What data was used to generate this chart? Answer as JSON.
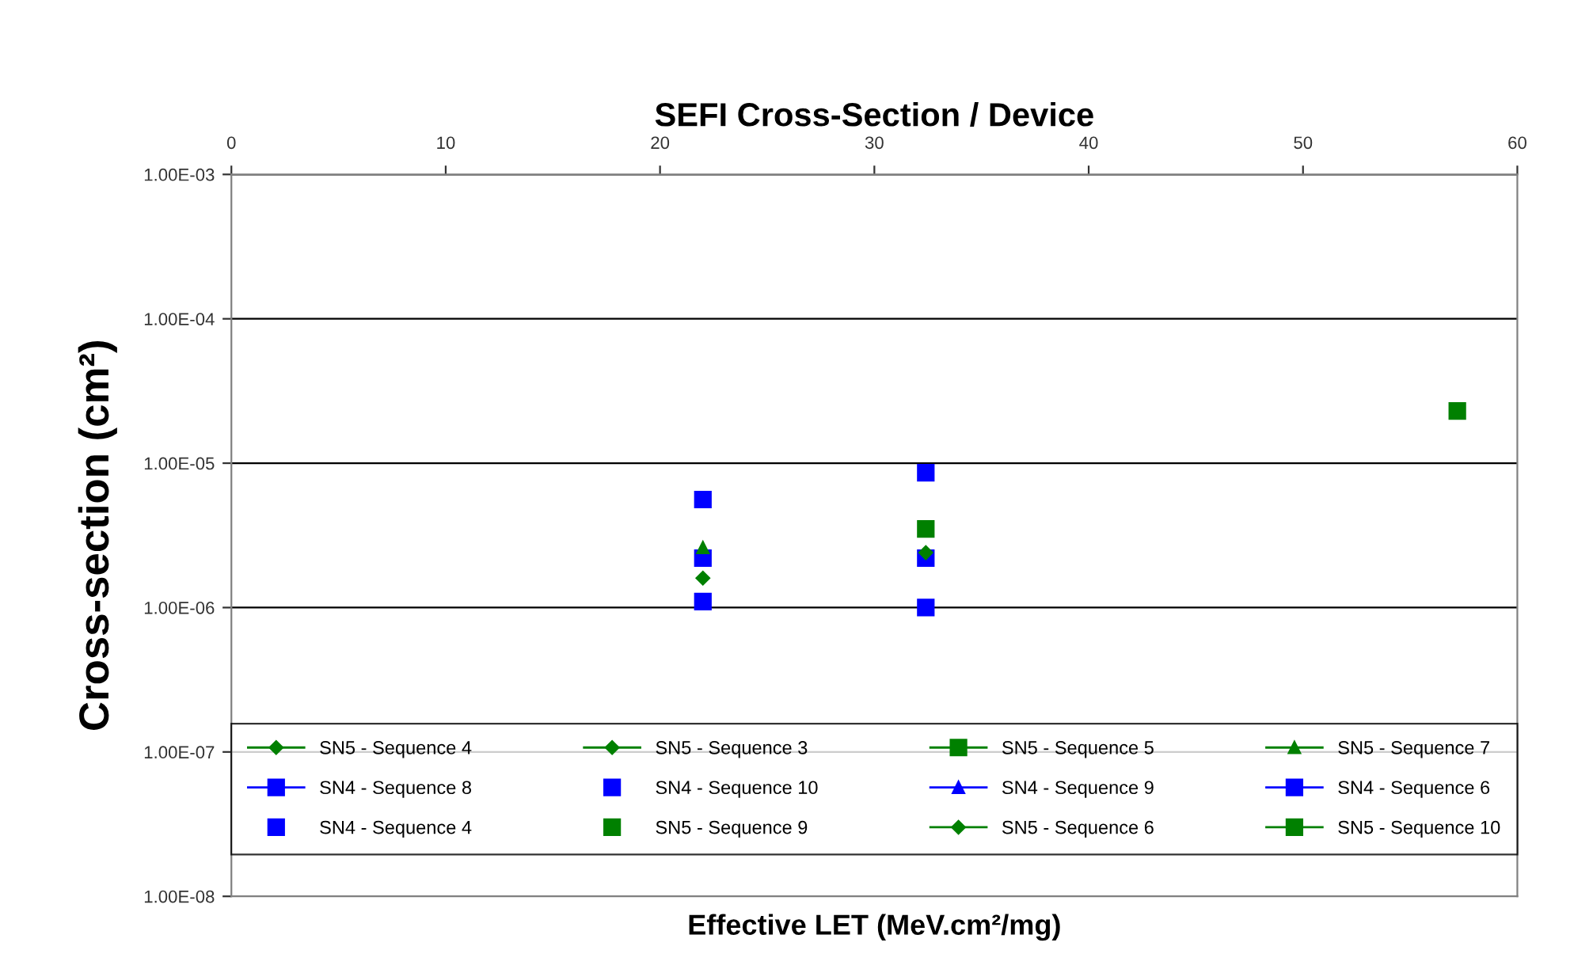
{
  "chart_data": {
    "type": "scatter",
    "title": "SEFI Cross-Section / Device",
    "xlabel": "Effective LET (MeV.cm²/mg)",
    "ylabel": "Cross-section (cm²)",
    "log": "y",
    "xlim": [
      0,
      60
    ],
    "xticks": [
      0,
      10,
      20,
      30,
      40,
      50,
      60
    ],
    "ylim": [
      1e-08,
      0.001
    ],
    "yticks": [
      {
        "value": 1e-08,
        "label": "1.00E-08"
      },
      {
        "value": 1e-07,
        "label": "1.00E-07"
      },
      {
        "value": 1e-06,
        "label": "1.00E-06"
      },
      {
        "value": 1e-05,
        "label": "1.00E-05"
      },
      {
        "value": 0.0001,
        "label": "1.00E-04"
      },
      {
        "value": 0.001,
        "label": "1.00E-03"
      }
    ],
    "grid": "y",
    "legend": "bottom",
    "series": [
      {
        "name": "SN5 - Sequence 4",
        "type": "line",
        "marker": "diamond",
        "color": "#008000",
        "x": [
          22
        ],
        "values": [
          1.6e-06
        ]
      },
      {
        "name": "SN5 - Sequence 3",
        "type": "line",
        "marker": "diamond",
        "color": "#008000",
        "x": [
          32.4
        ],
        "values": [
          2.4e-06
        ]
      },
      {
        "name": "SN5 - Sequence 5",
        "type": "line",
        "marker": "square",
        "color": "#008000"
      },
      {
        "name": "SN5 - Sequence 7",
        "type": "line",
        "marker": "triangle",
        "color": "#008000",
        "x": [
          22
        ],
        "values": [
          2.6e-06
        ]
      },
      {
        "name": "SN4 - Sequence 8",
        "type": "line",
        "marker": "square",
        "color": "#0000ff",
        "x": [
          22
        ],
        "values": [
          2.2e-06
        ]
      },
      {
        "name": "SN4 - Sequence 10",
        "marker": "square",
        "color": "#0000ff",
        "x": [
          22,
          32.4
        ],
        "values": [
          5.6e-06,
          8.6e-06
        ]
      },
      {
        "name": "SN4 - Sequence 9",
        "type": "line",
        "marker": "triangle",
        "color": "#0000ff"
      },
      {
        "name": "SN4 - Sequence 6",
        "type": "line",
        "marker": "square",
        "color": "#0000ff",
        "x": [
          32.4
        ],
        "values": [
          2.2e-06
        ]
      },
      {
        "name": "SN4 - Sequence 4",
        "marker": "square",
        "color": "#0000ff",
        "x": [
          22,
          32.4
        ],
        "values": [
          1.1e-06,
          1e-06
        ]
      },
      {
        "name": "SN5 - Sequence 9",
        "marker": "square",
        "color": "#008000",
        "x": [
          32.4
        ],
        "values": [
          3.5e-06
        ]
      },
      {
        "name": "SN5 - Sequence 6",
        "type": "line",
        "marker": "diamond",
        "color": "#008000"
      },
      {
        "name": "SN5 - Sequence 10",
        "type": "line",
        "marker": "square",
        "color": "#008000",
        "x": [
          57.2
        ],
        "values": [
          2.3e-05
        ]
      }
    ]
  }
}
